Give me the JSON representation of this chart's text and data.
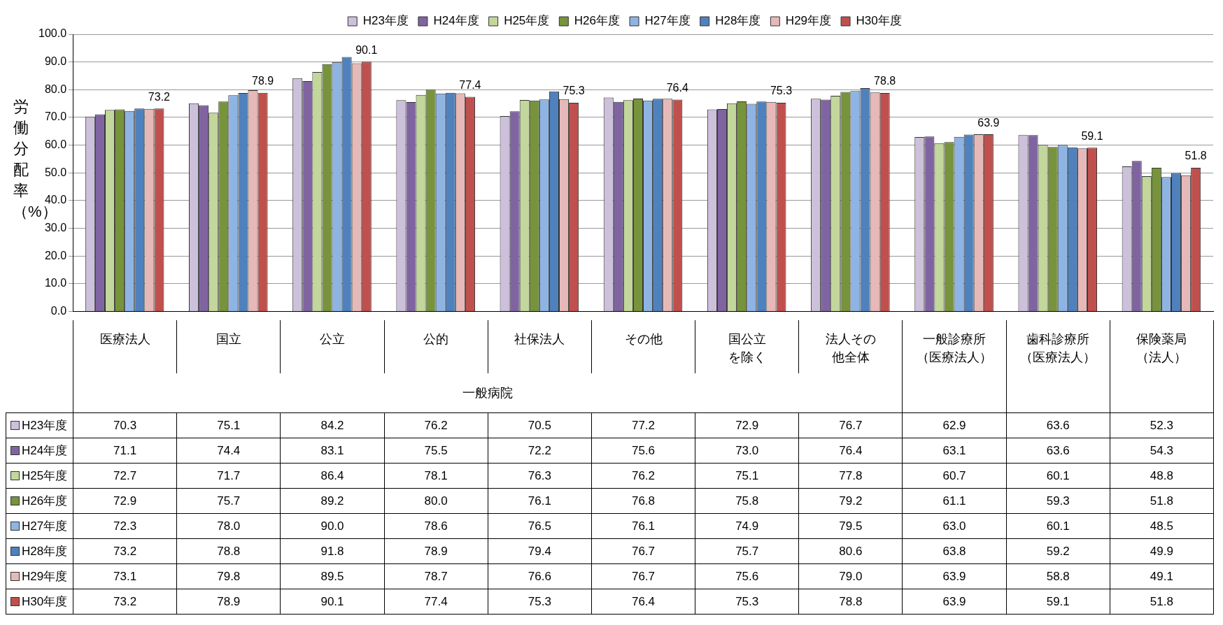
{
  "chart_data": {
    "type": "bar",
    "ylabel": "労働分配率（%）",
    "categories": [
      "医療法人",
      "国立",
      "公立",
      "公的",
      "社保法人",
      "その他",
      "国公立を除く",
      "法人その他全体",
      "一般診療所（医療法人）",
      "歯科診療所（医療法人）",
      "保険薬局（法人）"
    ],
    "annotations": [
      "一般病院"
    ],
    "ylim": [
      0,
      100
    ],
    "yticks": [
      {
        "value": 0,
        "label": "0.0"
      },
      {
        "value": 10,
        "label": "10.0"
      },
      {
        "value": 20,
        "label": "20.0"
      },
      {
        "value": 30,
        "label": "30.0"
      },
      {
        "value": 40,
        "label": "40.0"
      },
      {
        "value": 50,
        "label": "50.0"
      },
      {
        "value": 60,
        "label": "60.0"
      },
      {
        "value": 70,
        "label": "70.0"
      },
      {
        "value": 80,
        "label": "80.0"
      },
      {
        "value": 90,
        "label": "90.0"
      },
      {
        "value": 100,
        "label": "100.0"
      }
    ],
    "grid": "y",
    "legend": "top",
    "series": [
      {
        "name": "H23年度",
        "color": "#ccc0da",
        "values": [
          70.3,
          75.1,
          84.2,
          76.2,
          70.5,
          77.2,
          72.9,
          76.7,
          62.9,
          63.6,
          52.3
        ],
        "value_labels": [
          "70.3",
          "75.1",
          "84.2",
          "76.2",
          "70.5",
          "77.2",
          "72.9",
          "76.7",
          "62.9",
          "63.6",
          "52.3"
        ]
      },
      {
        "name": "H24年度",
        "color": "#8064a2",
        "values": [
          71.1,
          74.4,
          83.1,
          75.5,
          72.2,
          75.6,
          73.0,
          76.4,
          63.1,
          63.6,
          54.3
        ],
        "value_labels": [
          "71.1",
          "74.4",
          "83.1",
          "75.5",
          "72.2",
          "75.6",
          "73.0",
          "76.4",
          "63.1",
          "63.6",
          "54.3"
        ]
      },
      {
        "name": "H25年度",
        "color": "#c3d69b",
        "values": [
          72.7,
          71.7,
          86.4,
          78.1,
          76.3,
          76.2,
          75.1,
          77.8,
          60.7,
          60.1,
          48.8
        ],
        "value_labels": [
          "72.7",
          "71.7",
          "86.4",
          "78.1",
          "76.3",
          "76.2",
          "75.1",
          "77.8",
          "60.7",
          "60.1",
          "48.8"
        ]
      },
      {
        "name": "H26年度",
        "color": "#77933c",
        "values": [
          72.9,
          75.7,
          89.2,
          80.0,
          76.1,
          76.8,
          75.8,
          79.2,
          61.1,
          59.3,
          51.8
        ],
        "value_labels": [
          "72.9",
          "75.7",
          "89.2",
          "80.0",
          "76.1",
          "76.8",
          "75.8",
          "79.2",
          "61.1",
          "59.3",
          "51.8"
        ]
      },
      {
        "name": "H27年度",
        "color": "#8eb4e3",
        "values": [
          72.3,
          78.0,
          90.0,
          78.6,
          76.5,
          76.1,
          74.9,
          79.5,
          63.0,
          60.1,
          48.5
        ],
        "value_labels": [
          "72.3",
          "78.0",
          "90.0",
          "78.6",
          "76.5",
          "76.1",
          "74.9",
          "79.5",
          "63.0",
          "60.1",
          "48.5"
        ]
      },
      {
        "name": "H28年度",
        "color": "#4f81bd",
        "values": [
          73.2,
          78.8,
          91.8,
          78.9,
          79.4,
          76.7,
          75.7,
          80.6,
          63.8,
          59.2,
          49.9
        ],
        "value_labels": [
          "73.2",
          "78.8",
          "91.8",
          "78.9",
          "79.4",
          "76.7",
          "75.7",
          "80.6",
          "63.8",
          "59.2",
          "49.9"
        ]
      },
      {
        "name": "H29年度",
        "color": "#e6b9b8",
        "values": [
          73.1,
          79.8,
          89.5,
          78.7,
          76.6,
          76.7,
          75.6,
          79.0,
          63.9,
          58.8,
          49.1
        ],
        "value_labels": [
          "73.1",
          "79.8",
          "89.5",
          "78.7",
          "76.6",
          "76.7",
          "75.6",
          "79.0",
          "63.9",
          "58.8",
          "49.1"
        ]
      },
      {
        "name": "H30年度",
        "color": "#c0504d",
        "values": [
          73.2,
          78.9,
          90.1,
          77.4,
          75.3,
          76.4,
          75.3,
          78.8,
          63.9,
          59.1,
          51.8
        ],
        "value_labels": [
          "73.2",
          "78.9",
          "90.1",
          "77.4",
          "75.3",
          "76.4",
          "75.3",
          "78.8",
          "63.9",
          "59.1",
          "51.8"
        ]
      }
    ]
  }
}
